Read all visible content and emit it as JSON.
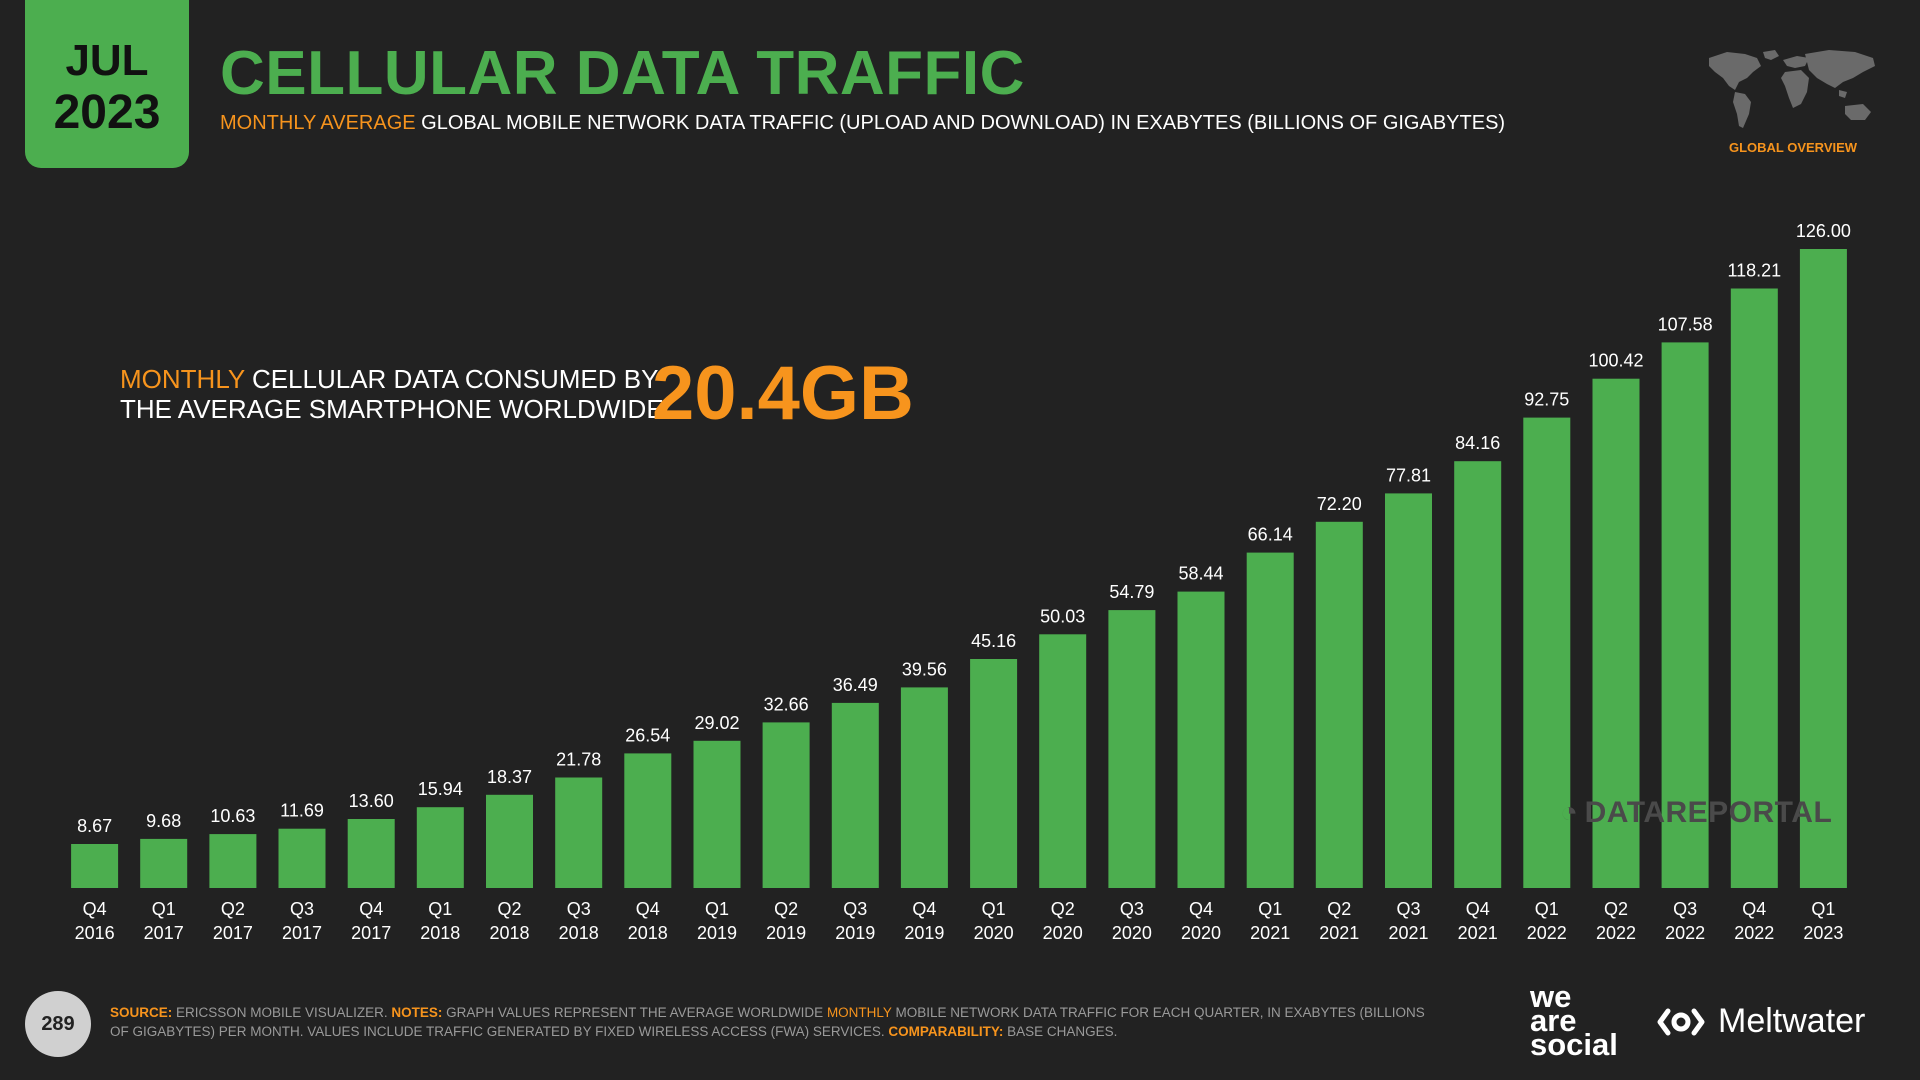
{
  "header": {
    "date_month": "JUL",
    "date_year": "2023",
    "title": "CELLULAR DATA TRAFFIC",
    "subtitle_accent": "MONTHLY AVERAGE",
    "subtitle_rest": " GLOBAL MOBILE NETWORK DATA TRAFFIC (UPLOAD AND DOWNLOAD) IN EXABYTES (BILLIONS OF GIGABYTES)",
    "global_overview": "GLOBAL OVERVIEW",
    "map_icon": "world-map-icon"
  },
  "callout": {
    "line1_accent": "MONTHLY",
    "line1_rest": " CELLULAR DATA CONSUMED BY",
    "line2": "THE AVERAGE SMARTPHONE WORLDWIDE:",
    "value": "20.4GB"
  },
  "chart_data": {
    "type": "bar",
    "title": "CELLULAR DATA TRAFFIC",
    "categories": [
      [
        "Q4",
        "2016"
      ],
      [
        "Q1",
        "2017"
      ],
      [
        "Q2",
        "2017"
      ],
      [
        "Q3",
        "2017"
      ],
      [
        "Q4",
        "2017"
      ],
      [
        "Q1",
        "2018"
      ],
      [
        "Q2",
        "2018"
      ],
      [
        "Q3",
        "2018"
      ],
      [
        "Q4",
        "2018"
      ],
      [
        "Q1",
        "2019"
      ],
      [
        "Q2",
        "2019"
      ],
      [
        "Q3",
        "2019"
      ],
      [
        "Q4",
        "2019"
      ],
      [
        "Q1",
        "2020"
      ],
      [
        "Q2",
        "2020"
      ],
      [
        "Q3",
        "2020"
      ],
      [
        "Q4",
        "2020"
      ],
      [
        "Q1",
        "2021"
      ],
      [
        "Q2",
        "2021"
      ],
      [
        "Q3",
        "2021"
      ],
      [
        "Q4",
        "2021"
      ],
      [
        "Q1",
        "2022"
      ],
      [
        "Q2",
        "2022"
      ],
      [
        "Q3",
        "2022"
      ],
      [
        "Q4",
        "2022"
      ],
      [
        "Q1",
        "2023"
      ]
    ],
    "values": [
      8.67,
      9.68,
      10.63,
      11.69,
      13.6,
      15.94,
      18.37,
      21.78,
      26.54,
      29.02,
      32.66,
      36.49,
      39.56,
      45.16,
      50.03,
      54.79,
      58.44,
      66.14,
      72.2,
      77.81,
      84.16,
      92.75,
      100.42,
      107.58,
      118.21,
      126.0
    ],
    "value_labels": [
      "8.67",
      "9.68",
      "10.63",
      "11.69",
      "13.60",
      "15.94",
      "18.37",
      "21.78",
      "26.54",
      "29.02",
      "32.66",
      "36.49",
      "39.56",
      "45.16",
      "50.03",
      "54.79",
      "58.44",
      "66.14",
      "72.20",
      "77.81",
      "84.16",
      "92.75",
      "100.42",
      "107.58",
      "118.21",
      "126.00"
    ],
    "ylim": [
      0,
      126
    ],
    "grid": false,
    "bar_color": "#4cae4f"
  },
  "watermark": "DATAREPORTAL",
  "footer": {
    "page_number": "289",
    "source_label": "SOURCE:",
    "source_text": " ERICSSON MOBILE VISUALIZER. ",
    "notes_label": "NOTES:",
    "notes_text_1": " GRAPH VALUES REPRESENT THE AVERAGE WORLDWIDE ",
    "notes_highlight": "MONTHLY",
    "notes_text_2": " MOBILE NETWORK DATA TRAFFIC FOR EACH QUARTER, IN EXABYTES (BILLIONS OF GIGABYTES) PER MONTH. VALUES INCLUDE TRAFFIC GENERATED BY FIXED WIRELESS ACCESS (FWA) SERVICES. ",
    "comparability_label": "COMPARABILITY:",
    "comparability_text": " BASE CHANGES.",
    "brand_1_line1": "we",
    "brand_1_line2": "are",
    "brand_1_line3": "social",
    "brand_2": "Meltwater"
  },
  "colors": {
    "background": "#222222",
    "green": "#4cae4f",
    "orange": "#f7941d"
  }
}
